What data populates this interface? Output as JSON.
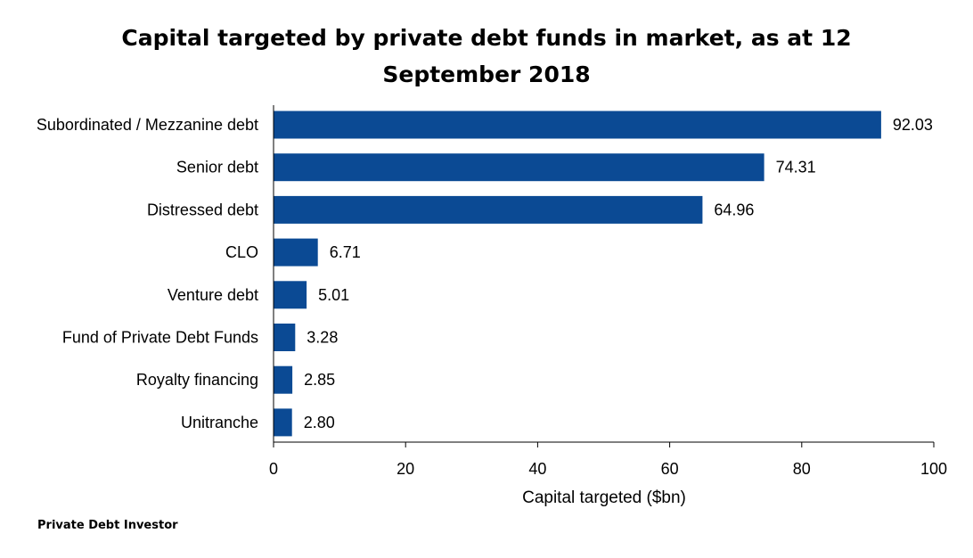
{
  "chart_data": {
    "type": "bar",
    "orientation": "horizontal",
    "title_lines": [
      "Capital targeted by private debt funds in market, as at 12",
      "September 2018"
    ],
    "categories": [
      "Subordinated / Mezzanine debt",
      "Senior debt",
      "Distressed debt",
      "CLO",
      "Venture debt",
      "Fund of Private Debt Funds",
      "Royalty financing",
      "Unitranche"
    ],
    "values": [
      92.03,
      74.31,
      64.96,
      6.71,
      5.01,
      3.28,
      2.85,
      2.8
    ],
    "value_labels": [
      "92.03",
      "74.31",
      "64.96",
      "6.71",
      "5.01",
      "3.28",
      "2.85",
      "2.80"
    ],
    "xlabel": "Capital targeted ($bn)",
    "ylabel": "",
    "xlim": [
      0,
      100
    ],
    "xticks": [
      0,
      20,
      40,
      60,
      80,
      100
    ],
    "grid": false,
    "bar_color": "#0B4A94"
  },
  "source": "Private Debt Investor"
}
